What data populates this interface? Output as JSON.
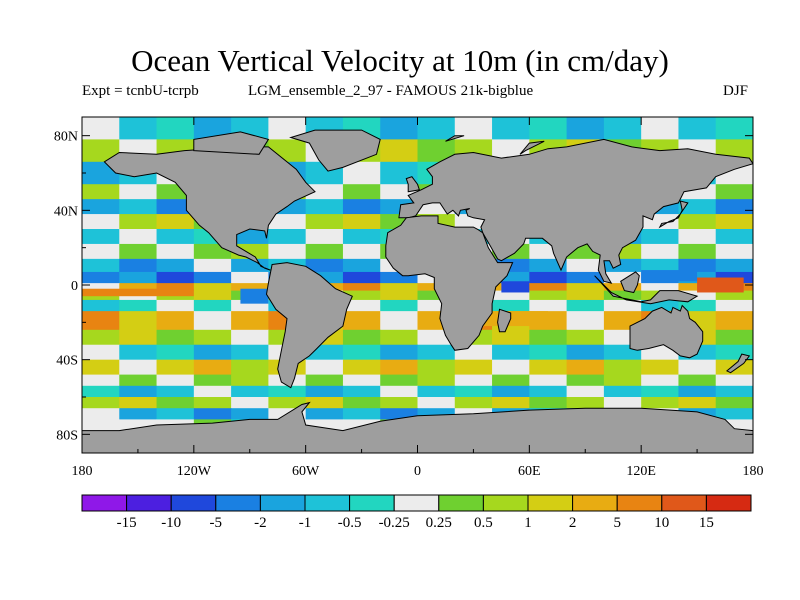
{
  "title": "Ocean Vertical Velocity at 10m (in cm/day)",
  "subtitle_left": "Expt = tcnbU-tcrpb",
  "subtitle_center": "LGM_ensemble_2_97 - FAMOUS 21k-bigblue",
  "season": "DJF",
  "lat_ticks": [
    "80N",
    "40N",
    "0",
    "40S",
    "80S"
  ],
  "lat_tick_values": [
    80,
    40,
    0,
    -40,
    -80
  ],
  "lon_ticks": [
    "180",
    "120W",
    "60W",
    "0",
    "60E",
    "120E",
    "180"
  ],
  "lon_tick_values": [
    -180,
    -120,
    -60,
    0,
    60,
    120,
    180
  ],
  "colorbar": {
    "labels": [
      "-15",
      "-10",
      "-5",
      "-2",
      "-1",
      "-0.5",
      "-0.25",
      "0.25",
      "0.5",
      "1",
      "2",
      "5",
      "10",
      "15"
    ],
    "colors": [
      "#8f18e8",
      "#4c1fe0",
      "#1f48dc",
      "#1a80e2",
      "#1aa4de",
      "#1ec2d8",
      "#22d6c0",
      "#ececec",
      "#6fd030",
      "#a6d81e",
      "#d4ce14",
      "#e8ac12",
      "#e88412",
      "#e0581a",
      "#d62a12"
    ]
  },
  "land_color": "#9e9e9e"
}
